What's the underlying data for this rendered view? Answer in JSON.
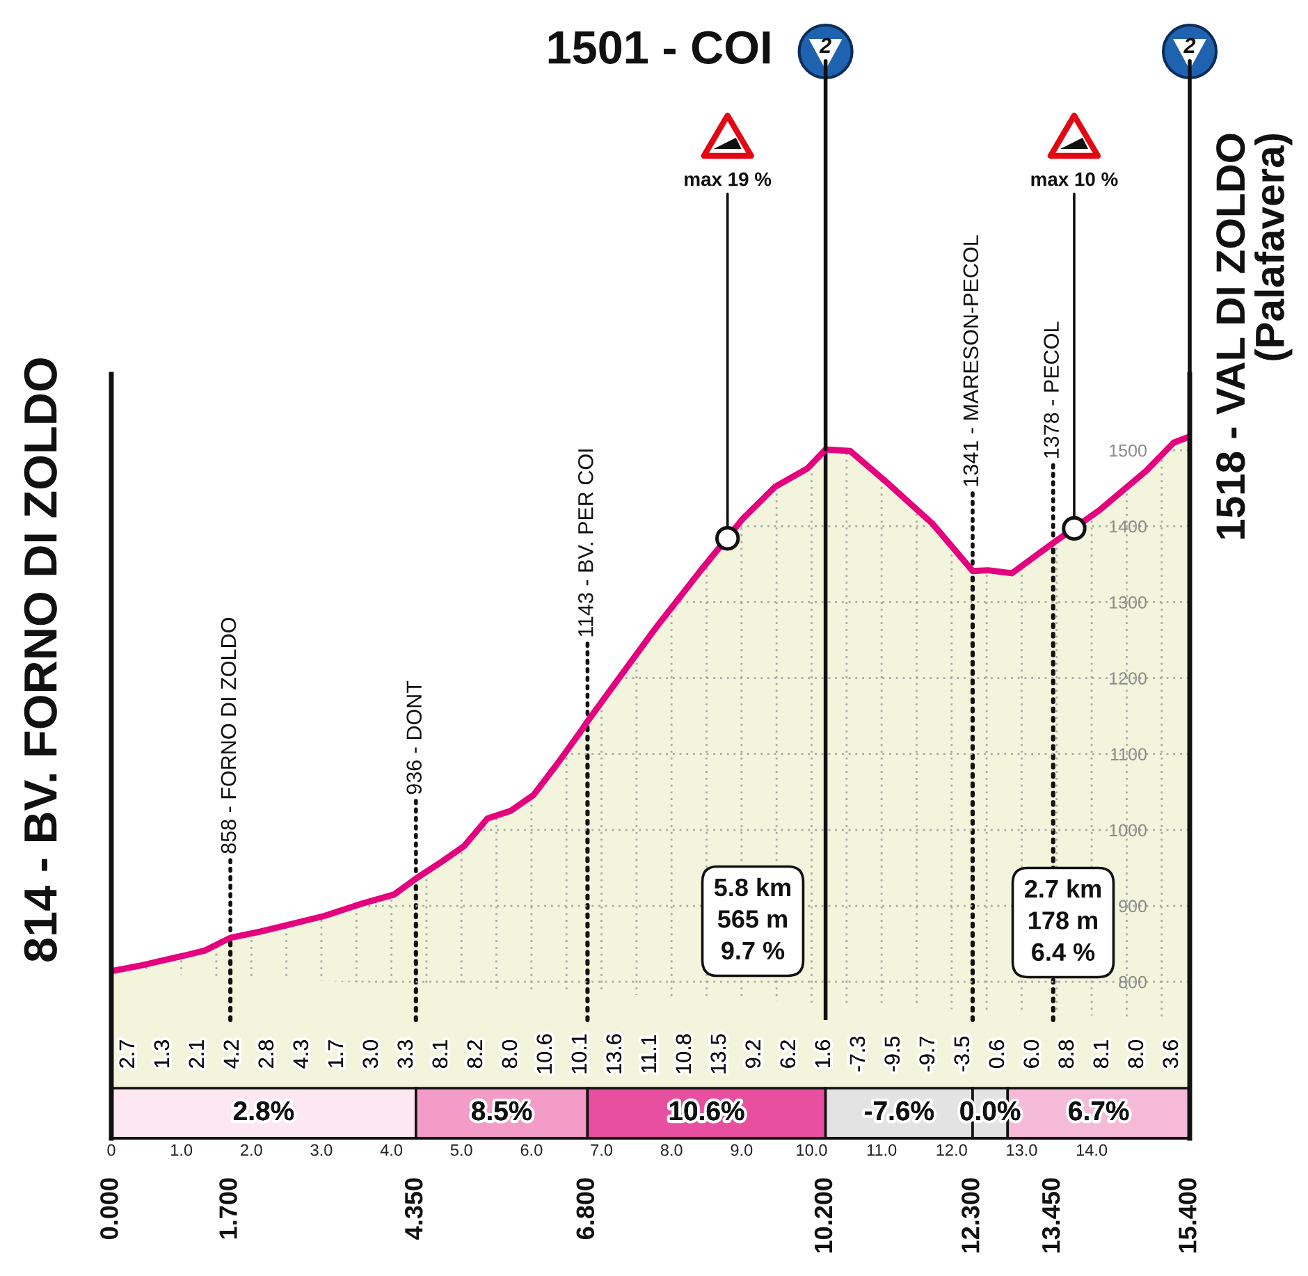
{
  "chart_data": {
    "type": "area",
    "series": [
      {
        "type": "area",
        "color": "#e5007e",
        "x": [
          0,
          0.4,
          1.06,
          1.33,
          1.7,
          2.12,
          2.39,
          3.05,
          3.58,
          4.04,
          4.35,
          4.7,
          5.04,
          5.37,
          5.7,
          6.03,
          6.36,
          6.69,
          6.8,
          7.22,
          7.75,
          8.42,
          9.01,
          9.48,
          9.94,
          10.2,
          10.55,
          11.07,
          11.73,
          12.3,
          12.52,
          12.86,
          13.45,
          14.11,
          14.78,
          15.17,
          15.4
        ],
        "values": [
          814,
          821,
          835,
          841,
          858,
          866,
          872,
          887,
          903,
          915,
          936,
          957,
          979,
          1015,
          1025,
          1046,
          1086,
          1128,
          1143,
          1196,
          1263,
          1342,
          1409,
          1452,
          1476,
          1501,
          1499,
          1458,
          1403,
          1341,
          1342,
          1338,
          1378,
          1421,
          1473,
          1510,
          1518
        ]
      },
      {
        "type": "scatter",
        "color": "#ffffff",
        "marker": "circle",
        "x": [
          8.8,
          13.75
        ],
        "values": [
          1384,
          1397
        ]
      }
    ],
    "xlim": [
      0,
      15.4
    ],
    "xticks": [
      0,
      {
        "value": 0.5,
        "label": null
      },
      {
        "value": 1,
        "label": "1.0"
      },
      {
        "value": 1.5,
        "label": null
      },
      {
        "value": 2,
        "label": "2.0"
      },
      {
        "value": 2.5,
        "label": null
      },
      {
        "value": 3,
        "label": "3.0"
      },
      {
        "value": 3.5,
        "label": null
      },
      {
        "value": 4,
        "label": "4.0"
      },
      {
        "value": 4.5,
        "label": null
      },
      {
        "value": 5,
        "label": "5.0"
      },
      {
        "value": 5.5,
        "label": null
      },
      {
        "value": 6,
        "label": "6.0"
      },
      {
        "value": 6.5,
        "label": null
      },
      {
        "value": 7,
        "label": "7.0"
      },
      {
        "value": 7.5,
        "label": null
      },
      {
        "value": 8,
        "label": "8.0"
      },
      {
        "value": 8.5,
        "label": null
      },
      {
        "value": 9,
        "label": "9.0"
      },
      {
        "value": 9.5,
        "label": null
      },
      {
        "value": 10,
        "label": "10.0"
      },
      {
        "value": 10.5,
        "label": null
      },
      {
        "value": 11,
        "label": "11.0"
      },
      {
        "value": 11.5,
        "label": null
      },
      {
        "value": 12,
        "label": "12.0"
      },
      {
        "value": 12.5,
        "label": null
      },
      {
        "value": 13,
        "label": "13.0"
      },
      {
        "value": 13.5,
        "label": null
      },
      {
        "value": 14,
        "label": "14.0"
      },
      {
        "value": 14.5,
        "label": null
      },
      {
        "value": 15,
        "label": null
      }
    ],
    "x2lim": [
      0,
      15.4
    ],
    "x2ticks": [
      {
        "value": 0,
        "label": "0.000"
      },
      {
        "value": 1.7,
        "label": "1.700"
      },
      {
        "value": 4.35,
        "label": "4.350"
      },
      {
        "value": 6.8,
        "label": "6.800"
      },
      {
        "value": 10.2,
        "label": "10.200"
      },
      {
        "value": 12.3,
        "label": "12.300"
      },
      {
        "value": 13.45,
        "label": "13.450"
      },
      {
        "value": 15.4,
        "label": "15.400"
      }
    ],
    "ylim": [
      594,
      1600
    ],
    "yticks": [
      800,
      900,
      1000,
      1100,
      1200,
      1300,
      1400,
      1500
    ],
    "grid": true,
    "bands": [
      {
        "axis": "x",
        "from": 0,
        "to": 4.35,
        "label": "2.8%",
        "color": "#fde8f2"
      },
      {
        "axis": "x",
        "from": 4.35,
        "to": 6.8,
        "label": "8.5%",
        "color": "#f39cc7"
      },
      {
        "axis": "x",
        "from": 6.8,
        "to": 10.2,
        "label": "10.6%",
        "color": "#e8509f"
      },
      {
        "axis": "x",
        "from": 10.2,
        "to": 12.3,
        "label": "-7.6%",
        "color": "#e3e3e3"
      },
      {
        "axis": "x",
        "from": 12.3,
        "to": 12.8,
        "label": "0.0%",
        "color": "#e3e3e3"
      },
      {
        "axis": "x",
        "from": 12.8,
        "to": 15.4,
        "label": "6.7%",
        "color": "#f5bad7"
      }
    ],
    "ref_lines": [
      {
        "axis": "x",
        "value": 1.7,
        "line_style": "dotted",
        "color": "#111111"
      },
      {
        "axis": "x",
        "value": 4.35,
        "line_style": "dotted",
        "color": "#111111"
      },
      {
        "axis": "x",
        "value": 6.8,
        "line_style": "dotted",
        "color": "#111111"
      },
      {
        "axis": "x",
        "value": 10.2,
        "line_style": "solid",
        "color": "#111111"
      },
      {
        "axis": "x",
        "value": 12.3,
        "line_style": "dotted",
        "color": "#111111"
      },
      {
        "axis": "x",
        "value": 13.45,
        "line_style": "dotted",
        "color": "#111111"
      }
    ],
    "annotations": [
      {
        "text": "814 - BV. FORNO DI ZOLDO",
        "x": 0,
        "y": 814
      },
      {
        "text": "858 - FORNO DI ZOLDO",
        "x": 1.7,
        "y": 858
      },
      {
        "text": "936 - DONT",
        "x": 4.35,
        "y": 936
      },
      {
        "text": "1143 - BV. PER COI",
        "x": 6.8,
        "y": 1143
      },
      {
        "text": "1501 - COI",
        "x": 10.2,
        "y": 1501
      },
      {
        "text": "1341 - MARESON-PECOL",
        "x": 12.3,
        "y": 1341
      },
      {
        "text": "1378 - PECOL",
        "x": 13.45,
        "y": 1378
      },
      {
        "text": "1518 - VAL DI ZOLDO\n(Palafavera)",
        "x": 15.4,
        "y": 1518
      },
      {
        "text": "max 19 %",
        "x": 8.8,
        "y": 1384
      },
      {
        "text": "max 10 %",
        "x": 13.75,
        "y": 1397
      },
      {
        "text": "2",
        "x": 10.2,
        "y": 1501
      },
      {
        "text": "2",
        "x": 15.4,
        "y": 1518
      },
      "5.8 km\n565 m\n9.7 %",
      "2.7 km\n178 m\n6.4 %",
      "2.7",
      "1.3",
      "2.1",
      "4.2",
      "2.8",
      "4.3",
      "1.7",
      "3.0",
      "3.3",
      "8.1",
      "8.2",
      "8.0",
      "10.6",
      "10.1",
      "13.6",
      "11.1",
      "10.8",
      "13.5",
      "9.2",
      "6.2",
      "1.6",
      "-7.3",
      "-9.5",
      "-9.7",
      "-3.5",
      "0.6",
      "6.0",
      "8.8",
      "8.1",
      "8.0",
      "3.6"
    ]
  }
}
